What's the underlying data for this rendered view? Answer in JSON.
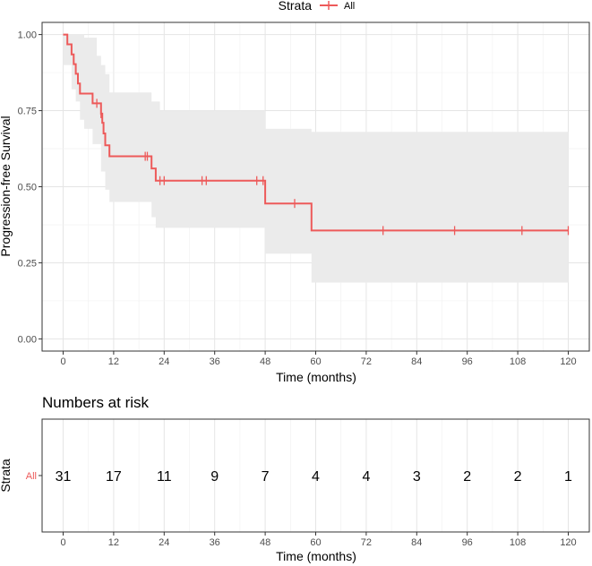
{
  "colors": {
    "curve": "#ed5a5a",
    "band": "#ebebeb",
    "grid": "#e5e5e5",
    "axis_text": "#4d4d4d",
    "panel_border": "#333333"
  },
  "chart_data": [
    {
      "type": "line",
      "subtype": "kaplan-meier step curve with confidence band",
      "legend": {
        "title": "Strata",
        "entries": [
          "All"
        ],
        "placement": "top-center"
      },
      "xlabel": "Time (months)",
      "ylabel": "Progression-free Survival",
      "xlim": [
        -5,
        125
      ],
      "ylim": [
        -0.04,
        1.04
      ],
      "x_ticks": [
        0,
        12,
        24,
        36,
        48,
        60,
        72,
        84,
        96,
        108,
        120
      ],
      "x_tick_labels": [
        "0",
        "12",
        "24",
        "36",
        "48",
        "60",
        "72",
        "84",
        "96",
        "108",
        "120"
      ],
      "y_ticks": [
        0,
        0.25,
        0.5,
        0.75,
        1.0
      ],
      "y_tick_labels": [
        "0.00",
        "0.25",
        "0.50",
        "0.75",
        "1.00"
      ],
      "series": [
        {
          "name": "All",
          "steps": [
            [
              0,
              1.0
            ],
            [
              1,
              0.968
            ],
            [
              2,
              0.935
            ],
            [
              2.5,
              0.903
            ],
            [
              3,
              0.871
            ],
            [
              3.5,
              0.839
            ],
            [
              4,
              0.806
            ],
            [
              7,
              0.774
            ],
            [
              9,
              0.74
            ],
            [
              9.3,
              0.71
            ],
            [
              9.6,
              0.675
            ],
            [
              10,
              0.636
            ],
            [
              11,
              0.6
            ],
            [
              21,
              0.56
            ],
            [
              22,
              0.52
            ],
            [
              48,
              0.445
            ],
            [
              59,
              0.356
            ],
            [
              120,
              0.356
            ]
          ],
          "censor_times": [
            8,
            9,
            19.5,
            20,
            23,
            24,
            33,
            34,
            46,
            47.5,
            55,
            76,
            93,
            109,
            120
          ],
          "ci_lower": [
            [
              0,
              0.9
            ],
            [
              1,
              0.9
            ],
            [
              2,
              0.82
            ],
            [
              3,
              0.78
            ],
            [
              4,
              0.72
            ],
            [
              5,
              0.69
            ],
            [
              7,
              0.64
            ],
            [
              9,
              0.55
            ],
            [
              10,
              0.49
            ],
            [
              11,
              0.45
            ],
            [
              21,
              0.4
            ],
            [
              22,
              0.365
            ],
            [
              48,
              0.28
            ],
            [
              59,
              0.185
            ],
            [
              120,
              0.185
            ]
          ],
          "ci_upper": [
            [
              0,
              1.0
            ],
            [
              2,
              1.0
            ],
            [
              3,
              1.0
            ],
            [
              5,
              0.99
            ],
            [
              8,
              0.93
            ],
            [
              9,
              0.9
            ],
            [
              10,
              0.87
            ],
            [
              11,
              0.81
            ],
            [
              12,
              0.81
            ],
            [
              21,
              0.78
            ],
            [
              23,
              0.75
            ],
            [
              48,
              0.69
            ],
            [
              59,
              0.68
            ],
            [
              120,
              0.68
            ]
          ]
        }
      ]
    },
    {
      "type": "table",
      "title": "Numbers at risk",
      "ylabel": "Strata",
      "row_label": "All",
      "xlabel": "Time (months)",
      "times": [
        0,
        12,
        24,
        36,
        48,
        60,
        72,
        84,
        96,
        108,
        120
      ],
      "values": [
        "31",
        "17",
        "11",
        "9",
        "7",
        "4",
        "4",
        "3",
        "2",
        "2",
        "1"
      ],
      "x_tick_labels": [
        "0",
        "12",
        "24",
        "36",
        "48",
        "60",
        "72",
        "84",
        "96",
        "108",
        "120"
      ]
    }
  ]
}
